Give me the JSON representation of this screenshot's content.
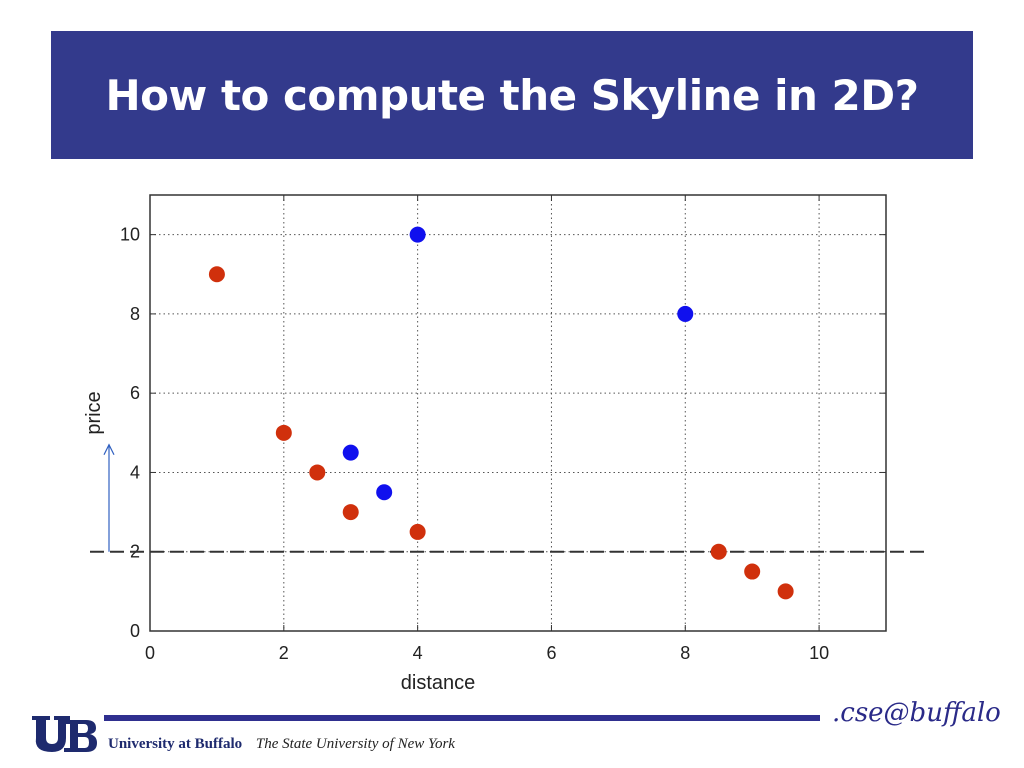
{
  "title": "How to compute the Skyline in 2D?",
  "footer": {
    "university": "University at Buffalo",
    "suny": "The State University of New York",
    "brand": ".cse@buffalo"
  },
  "colors": {
    "title_bg": "#333a8c",
    "skyline": "#1010ee",
    "dominated": "#d0300c"
  },
  "chart_data": {
    "type": "scatter",
    "xlabel": "distance",
    "ylabel": "price",
    "xlim": [
      0,
      11
    ],
    "ylim": [
      0,
      11
    ],
    "xticks": [
      0,
      2,
      4,
      6,
      8,
      10
    ],
    "yticks": [
      0,
      2,
      4,
      6,
      8,
      10
    ],
    "grid": true,
    "threshold_line_y": 2,
    "series": [
      {
        "color": "#1010ee",
        "points": [
          [
            4,
            10
          ],
          [
            8,
            8
          ],
          [
            3,
            4.5
          ],
          [
            3.5,
            3.5
          ]
        ]
      },
      {
        "color": "#d0300c",
        "points": [
          [
            1,
            9
          ],
          [
            2,
            5
          ],
          [
            2.5,
            4
          ],
          [
            3,
            3
          ],
          [
            4,
            2.5
          ],
          [
            8.5,
            2
          ],
          [
            9,
            1.5
          ],
          [
            9.5,
            1
          ]
        ]
      }
    ],
    "annotation_arrow": {
      "y_from": 2,
      "y_to": 4.7,
      "direction": "up"
    }
  }
}
